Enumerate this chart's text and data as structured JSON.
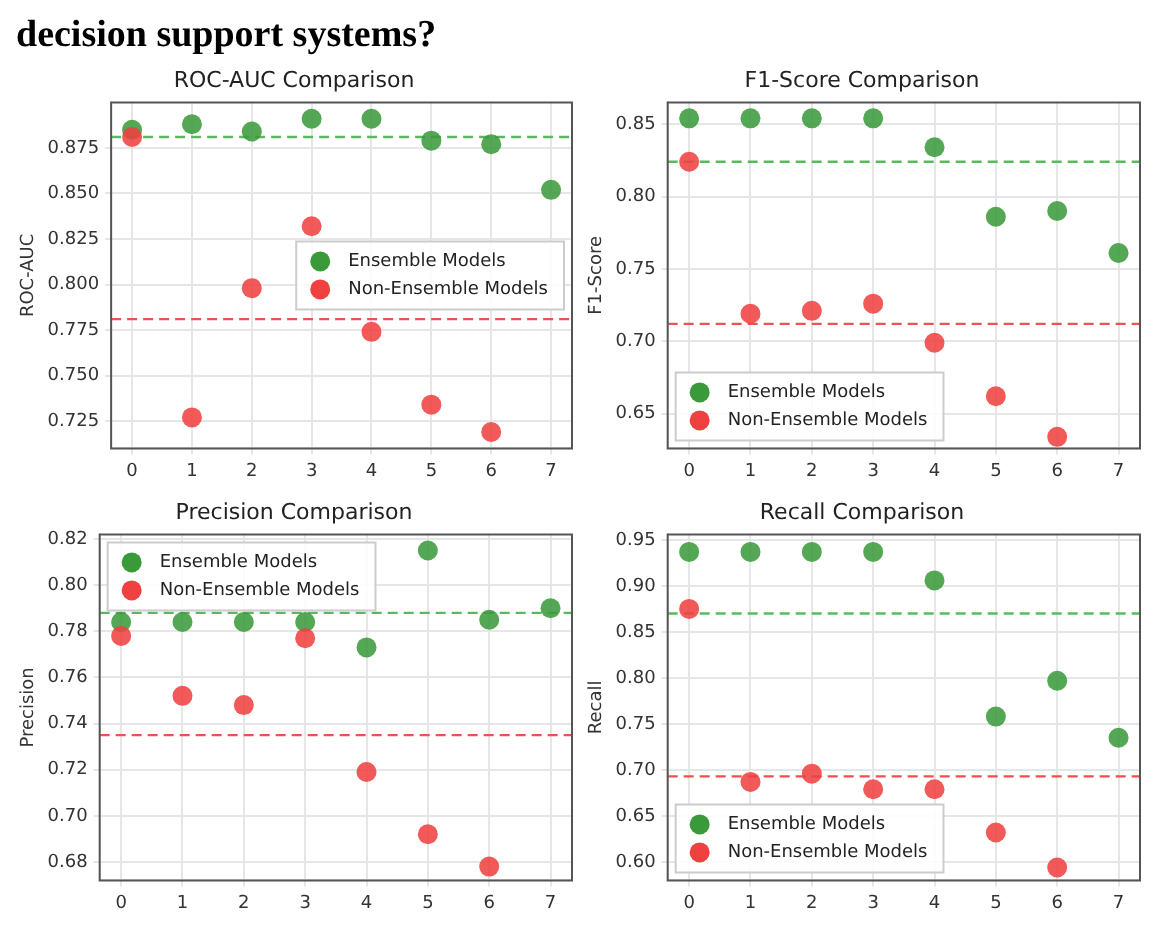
{
  "chart_data": [
    {
      "type": "other",
      "annotations": [
        "decision support systems?"
      ]
    },
    {
      "type": "scatter",
      "title": "ROC-AUC Comparison",
      "ylabel": "ROC-AUC",
      "x": [
        0,
        1,
        2,
        3,
        4,
        5,
        6,
        7
      ],
      "xlim": [
        -0.35,
        7.35
      ],
      "xticks": [
        0,
        1,
        2,
        3,
        4,
        5,
        6,
        7
      ],
      "ylim": [
        0.71,
        0.9
      ],
      "yticks": [
        0.725,
        {
          "value": 0.75,
          "label": "0.750"
        },
        0.775,
        {
          "value": 0.8,
          "label": "0.800"
        },
        0.825,
        {
          "value": 0.85,
          "label": "0.850"
        },
        0.875
      ],
      "grid": true,
      "legend": "right",
      "marker": "circle",
      "series": [
        {
          "name": "Ensemble Models",
          "color": "#3a9a3a",
          "values": [
            0.885,
            0.888,
            0.884,
            0.891,
            0.891,
            0.879,
            0.877,
            0.852
          ]
        },
        {
          "name": "Non-Ensemble Models",
          "color": "#f04040",
          "values": [
            0.881,
            0.727,
            0.798,
            0.832,
            0.774,
            0.734,
            0.719,
            null
          ]
        }
      ],
      "ref_lines": [
        {
          "axis": "y",
          "value": 0.881,
          "color": "#5cb85c",
          "line_style": "dashed"
        },
        {
          "axis": "y",
          "value": 0.781,
          "color": "#f05050",
          "line_style": "dashed"
        }
      ]
    },
    {
      "type": "scatter",
      "title": "F1-Score Comparison",
      "ylabel": "F1-Score",
      "x": [
        0,
        1,
        2,
        3,
        4,
        5,
        6,
        7
      ],
      "xlim": [
        -0.35,
        7.35
      ],
      "xticks": [
        0,
        1,
        2,
        3,
        4,
        5,
        6,
        7
      ],
      "ylim": [
        0.626,
        0.865
      ],
      "yticks": [
        0.65,
        {
          "value": 0.7,
          "label": "0.70"
        },
        0.75,
        {
          "value": 0.8,
          "label": "0.80"
        },
        0.85
      ],
      "grid": true,
      "legend": "bottom left",
      "marker": "circle",
      "series": [
        {
          "name": "Ensemble Models",
          "color": "#3a9a3a",
          "values": [
            0.854,
            0.854,
            0.854,
            0.854,
            0.834,
            0.786,
            0.79,
            0.761
          ]
        },
        {
          "name": "Non-Ensemble Models",
          "color": "#f04040",
          "values": [
            0.824,
            0.719,
            0.721,
            0.726,
            0.699,
            0.662,
            0.634,
            null
          ]
        }
      ],
      "ref_lines": [
        {
          "axis": "y",
          "value": 0.824,
          "color": "#5cb85c",
          "line_style": "dashed"
        },
        {
          "axis": "y",
          "value": 0.712,
          "color": "#f05050",
          "line_style": "dashed"
        }
      ]
    },
    {
      "type": "scatter",
      "title": "Precision Comparison",
      "ylabel": "Precision",
      "x": [
        0,
        1,
        2,
        3,
        4,
        5,
        6,
        7
      ],
      "xlim": [
        -0.35,
        7.35
      ],
      "xticks": [
        0,
        1,
        2,
        3,
        4,
        5,
        6,
        7
      ],
      "ylim": [
        0.672,
        0.822
      ],
      "yticks": [
        0.68,
        {
          "value": 0.7,
          "label": "0.70"
        },
        0.72,
        0.74,
        0.76,
        0.78,
        {
          "value": 0.8,
          "label": "0.80"
        },
        0.82
      ],
      "grid": true,
      "legend": "top left",
      "marker": "circle",
      "series": [
        {
          "name": "Ensemble Models",
          "color": "#3a9a3a",
          "values": [
            0.784,
            0.784,
            0.784,
            0.784,
            0.773,
            0.815,
            0.785,
            0.79
          ]
        },
        {
          "name": "Non-Ensemble Models",
          "color": "#f04040",
          "values": [
            0.778,
            0.752,
            0.748,
            0.777,
            0.719,
            0.692,
            0.678,
            null
          ]
        }
      ],
      "ref_lines": [
        {
          "axis": "y",
          "value": 0.788,
          "color": "#5cb85c",
          "line_style": "dashed"
        },
        {
          "axis": "y",
          "value": 0.735,
          "color": "#f05050",
          "line_style": "dashed"
        }
      ]
    },
    {
      "type": "scatter",
      "title": "Recall Comparison",
      "ylabel": "Recall",
      "x": [
        0,
        1,
        2,
        3,
        4,
        5,
        6,
        7
      ],
      "xlim": [
        -0.35,
        7.35
      ],
      "xticks": [
        0,
        1,
        2,
        3,
        4,
        5,
        6,
        7
      ],
      "ylim": [
        0.58,
        0.956
      ],
      "yticks": [
        {
          "value": 0.6,
          "label": "0.60"
        },
        0.65,
        {
          "value": 0.7,
          "label": "0.70"
        },
        0.75,
        {
          "value": 0.8,
          "label": "0.80"
        },
        0.85,
        {
          "value": 0.9,
          "label": "0.90"
        },
        0.95
      ],
      "grid": true,
      "legend": "bottom left",
      "marker": "circle",
      "series": [
        {
          "name": "Ensemble Models",
          "color": "#3a9a3a",
          "values": [
            0.937,
            0.937,
            0.937,
            0.937,
            0.906,
            0.758,
            0.797,
            0.735
          ]
        },
        {
          "name": "Non-Ensemble Models",
          "color": "#f04040",
          "values": [
            0.875,
            0.687,
            0.696,
            0.679,
            0.679,
            0.632,
            0.594,
            null
          ]
        }
      ],
      "ref_lines": [
        {
          "axis": "y",
          "value": 0.87,
          "color": "#5cb85c",
          "line_style": "dashed"
        },
        {
          "axis": "y",
          "value": 0.693,
          "color": "#f05050",
          "line_style": "dashed"
        }
      ]
    }
  ]
}
